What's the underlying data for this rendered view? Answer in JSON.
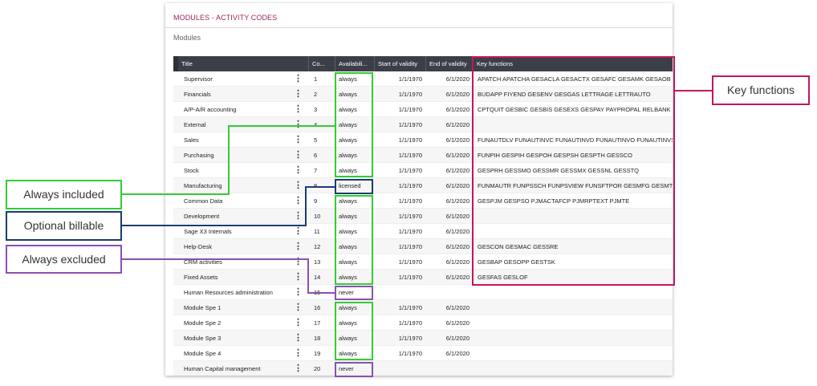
{
  "panel": {
    "title": "MODULES - ACTIVITY CODES",
    "section": "Modules"
  },
  "table": {
    "columns": [
      "Title",
      "Co...",
      "Availabili...",
      "Start of validity",
      "End of validity",
      "Key functions"
    ],
    "rows": [
      {
        "title": "Supervisor",
        "code": "1",
        "availability": "always",
        "start": "1/1/1970",
        "end": "6/1/2020",
        "keys": "APATCH APATCHA GESACLA GESACTX GESAFC GESAMK GESAOB GESARP"
      },
      {
        "title": "Financials",
        "code": "2",
        "availability": "always",
        "start": "1/1/1970",
        "end": "6/1/2020",
        "keys": "BUDAPP FIYEND GESENV GESGAS LETTRAGE LETTRAUTO"
      },
      {
        "title": "A/P-A/R accounting",
        "code": "3",
        "availability": "always",
        "start": "1/1/1970",
        "end": "6/1/2020",
        "keys": "CPTQUIT GESBIC GESBIS GESEXS GESPAY PAYPROPAL RELBANK"
      },
      {
        "title": "External",
        "code": "4",
        "availability": "always",
        "start": "1/1/1970",
        "end": "6/1/2020",
        "keys": ""
      },
      {
        "title": "Sales",
        "code": "5",
        "availability": "always",
        "start": "1/1/1970",
        "end": "6/1/2020",
        "keys": "FUNAUTDLV FUNAUTINVC FUNAUTINVD FUNAUTINVO FUNAUTINVS FUNAUTL"
      },
      {
        "title": "Purchasing",
        "code": "6",
        "availability": "always",
        "start": "1/1/1970",
        "end": "6/1/2020",
        "keys": "FUNPIH GESPIH GESPOH GESPSH GESPTH GESSCO"
      },
      {
        "title": "Stock",
        "code": "7",
        "availability": "always",
        "start": "1/1/1970",
        "end": "6/1/2020",
        "keys": "GESPRH GESSMO GESSMR GESSMX GESSNL GESSTQ"
      },
      {
        "title": "Manufacturing",
        "code": "8",
        "availability": "licensed",
        "start": "1/1/1970",
        "end": "6/1/2020",
        "keys": "FUNMAUTR FUNPSSCH FUNPSVIEW FUNSFTPOR GESMFG GESMTK GESROU"
      },
      {
        "title": "Common Data",
        "code": "9",
        "availability": "always",
        "start": "1/1/1970",
        "end": "6/1/2020",
        "keys": "GESPJM GESPSO PJMACTAFCP PJMRPTEXT PJMTE"
      },
      {
        "title": "Development",
        "code": "10",
        "availability": "always",
        "start": "1/1/1970",
        "end": "6/1/2020",
        "keys": ""
      },
      {
        "title": "Sage X3 Internals",
        "code": "11",
        "availability": "always",
        "start": "1/1/1970",
        "end": "6/1/2020",
        "keys": ""
      },
      {
        "title": "Help-Desk",
        "code": "12",
        "availability": "always",
        "start": "1/1/1970",
        "end": "6/1/2020",
        "keys": "GESCON GESMAC GESSRE"
      },
      {
        "title": "CRM activities",
        "code": "13",
        "availability": "always",
        "start": "1/1/1970",
        "end": "6/1/2020",
        "keys": "GESBAP GESOPP GESTSK"
      },
      {
        "title": "Fixed Assets",
        "code": "14",
        "availability": "always",
        "start": "1/1/1970",
        "end": "6/1/2020",
        "keys": "GESFAS GESLOF"
      },
      {
        "title": "Human Resources administration",
        "code": "15",
        "availability": "never",
        "start": "",
        "end": "",
        "keys": ""
      },
      {
        "title": "Module Spe 1",
        "code": "16",
        "availability": "always",
        "start": "1/1/1970",
        "end": "6/1/2020",
        "keys": ""
      },
      {
        "title": "Module Spe 2",
        "code": "17",
        "availability": "always",
        "start": "1/1/1970",
        "end": "6/1/2020",
        "keys": ""
      },
      {
        "title": "Module Spe 3",
        "code": "18",
        "availability": "always",
        "start": "1/1/1970",
        "end": "6/1/2020",
        "keys": ""
      },
      {
        "title": "Module Spe 4",
        "code": "19",
        "availability": "always",
        "start": "1/1/1970",
        "end": "6/1/2020",
        "keys": ""
      },
      {
        "title": "Human Capital management",
        "code": "20",
        "availability": "never",
        "start": "",
        "end": "",
        "keys": ""
      }
    ],
    "row_menu_icon": "vertical-ellipsis-icon"
  },
  "callouts": {
    "key_functions": "Key functions",
    "always_included": "Always included",
    "optional_billable": "Optional billable",
    "always_excluded": "Always excluded"
  },
  "colors": {
    "panel_title": "#a0245c",
    "header_bg": "#3b3f48",
    "always_included": "#33cc33",
    "optional_billable": "#1a3c6e",
    "always_excluded": "#8b4fb3",
    "key_functions": "#c0185e"
  }
}
